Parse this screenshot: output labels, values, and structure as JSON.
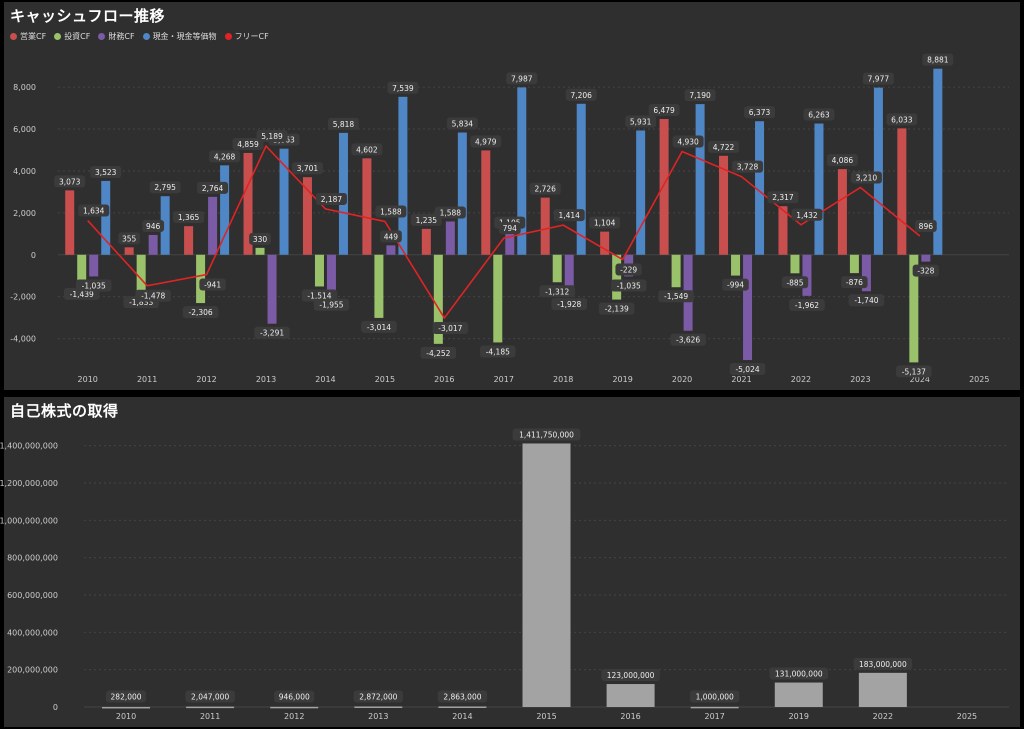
{
  "colors": {
    "op": "#c94f4f",
    "inv": "#9ac26a",
    "fin": "#7b5aa6",
    "cash": "#4f86c6",
    "free": "#e02424",
    "bar2": "#a3a3a3",
    "label_bg": "#3b3b3b"
  },
  "chart_data": [
    {
      "type": "bar",
      "title": "キャッシュフロー推移",
      "legend_placement": "top-left",
      "categories": [
        "2010",
        "2011",
        "2012",
        "2013",
        "2014",
        "2015",
        "2016",
        "2017",
        "2018",
        "2019",
        "2020",
        "2021",
        "2022",
        "2023",
        "2024",
        "2025"
      ],
      "yticks": [
        "8,000",
        "6,000",
        "4,000",
        "2,000",
        "0",
        "-2,000",
        "-4,000"
      ],
      "ylim": [
        -5500,
        9200
      ],
      "grid": true,
      "series": [
        {
          "name": "営業CF",
          "key": "op",
          "values": [
            3073,
            355,
            1365,
            4859,
            3701,
            4602,
            1235,
            4979,
            2726,
            1104,
            6479,
            4722,
            2317,
            4086,
            6033,
            null
          ]
        },
        {
          "name": "投資CF",
          "key": "inv",
          "values": [
            -1439,
            -1833,
            -2306,
            330,
            -1514,
            -3014,
            -4252,
            -4185,
            -1312,
            -2139,
            -1549,
            -994,
            -885,
            -876,
            -5137,
            null
          ]
        },
        {
          "name": "財務CF",
          "key": "fin",
          "values": [
            -1035,
            946,
            2764,
            -3291,
            -1955,
            449,
            1588,
            1105,
            -1928,
            -1035,
            -3626,
            -5024,
            -1962,
            -1740,
            -328,
            null
          ]
        },
        {
          "name": "現金・現金等価物",
          "key": "cash",
          "values": [
            3523,
            2795,
            4268,
            5063,
            5818,
            7539,
            5834,
            7987,
            7206,
            5931,
            7190,
            6373,
            6263,
            7977,
            8881,
            null
          ]
        },
        {
          "name": "フリーCF",
          "key": "free",
          "type": "line",
          "values": [
            1634,
            -1478,
            -941,
            5189,
            2187,
            1588,
            -3017,
            794,
            1414,
            -229,
            4930,
            3728,
            1432,
            3210,
            896,
            null
          ]
        }
      ]
    },
    {
      "type": "bar",
      "title": "自己株式の取得",
      "categories": [
        "2010",
        "2011",
        "2012",
        "2013",
        "2014",
        "2015",
        "2016",
        "2017",
        "2019",
        "2022",
        "2025"
      ],
      "values": [
        282000,
        2047000,
        946000,
        2872000,
        2863000,
        1411750000,
        123000000,
        1000000,
        131000000,
        183000000,
        null
      ],
      "value_labels": [
        "282,000",
        "2,047,000",
        "946,000",
        "2,872,000",
        "2,863,000",
        "1,411,750,000",
        "123,000,000",
        "1,000,000",
        "131,000,000",
        "183,000,000",
        ""
      ],
      "yticks": [
        "1,400,000,000",
        "1,200,000,000",
        "1,000,000,000",
        "800,000,000",
        "600,000,000",
        "400,000,000",
        "200,000,000",
        "0"
      ],
      "ylim": [
        0,
        1500000000
      ],
      "grid": true
    }
  ]
}
